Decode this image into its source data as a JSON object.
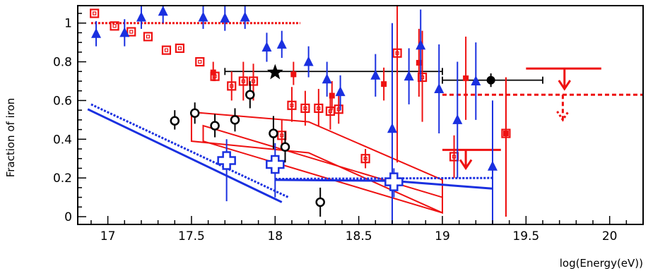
{
  "chart_data": {
    "type": "scatter",
    "title": "",
    "xlabel": "log(Energy(eV))",
    "ylabel": "Fraction of iron",
    "xlim": [
      16.82,
      20.2
    ],
    "ylim": [
      -0.04,
      1.09
    ],
    "x_ticks": [
      17,
      17.5,
      18,
      18.5,
      19,
      19.5,
      20
    ],
    "x_tick_labels": [
      "17",
      "17.5",
      "18",
      "18.5",
      "19",
      "19.5",
      "20"
    ],
    "y_ticks": [
      0,
      0.2,
      0.4,
      0.6,
      0.8,
      1
    ],
    "y_tick_labels": [
      "0",
      "0.2",
      "0.4",
      "0.6",
      "0.8",
      "1"
    ],
    "grid": false,
    "colors": {
      "red": "#ee1111",
      "blue": "#1a30e0",
      "black": "#000000"
    },
    "series": [
      {
        "marker": "open-square",
        "color": "#ee1111",
        "points": [
          {
            "x": 16.92,
            "y": 1.05,
            "lo": 1.05,
            "hi": 1.05
          },
          {
            "x": 17.04,
            "y": 0.985,
            "lo": 0.985,
            "hi": 0.985
          },
          {
            "x": 17.14,
            "y": 0.955,
            "lo": 0.955,
            "hi": 0.955
          },
          {
            "x": 17.24,
            "y": 0.93,
            "lo": 0.93,
            "hi": 0.93
          },
          {
            "x": 17.35,
            "y": 0.86,
            "lo": 0.86,
            "hi": 0.86
          },
          {
            "x": 17.43,
            "y": 0.87,
            "lo": 0.87,
            "hi": 0.87
          },
          {
            "x": 17.55,
            "y": 0.8,
            "lo": 0.8,
            "hi": 0.8
          },
          {
            "x": 17.64,
            "y": 0.725,
            "lo": 0.7,
            "hi": 0.76
          },
          {
            "x": 17.74,
            "y": 0.675,
            "lo": 0.6,
            "hi": 0.75
          },
          {
            "x": 17.81,
            "y": 0.7,
            "lo": 0.6,
            "hi": 0.8
          },
          {
            "x": 17.87,
            "y": 0.7,
            "lo": 0.6,
            "hi": 0.79
          },
          {
            "x": 18.1,
            "y": 0.575,
            "lo": 0.49,
            "hi": 0.67
          },
          {
            "x": 18.04,
            "y": 0.42,
            "lo": 0.35,
            "hi": 0.5
          },
          {
            "x": 18.18,
            "y": 0.56,
            "lo": 0.47,
            "hi": 0.65
          },
          {
            "x": 18.26,
            "y": 0.56,
            "lo": 0.47,
            "hi": 0.66
          },
          {
            "x": 18.33,
            "y": 0.545,
            "lo": 0.45,
            "hi": 0.64
          },
          {
            "x": 18.38,
            "y": 0.555,
            "lo": 0.48,
            "hi": 0.63
          },
          {
            "x": 18.54,
            "y": 0.3,
            "lo": 0.25,
            "hi": 0.35
          },
          {
            "x": 18.73,
            "y": 0.845,
            "lo": 0.28,
            "hi": 1.09
          },
          {
            "x": 18.88,
            "y": 0.72,
            "lo": 0.49,
            "hi": 0.96
          },
          {
            "x": 19.07,
            "y": 0.31,
            "lo": 0.2,
            "hi": 0.42
          },
          {
            "x": 19.38,
            "y": 0.43,
            "lo": 0.0,
            "hi": 0.72
          }
        ]
      },
      {
        "marker": "filled-square",
        "color": "#ee1111",
        "points": [
          {
            "x": 17.63,
            "y": 0.745,
            "lo": 0.7,
            "hi": 0.8
          },
          {
            "x": 18.11,
            "y": 0.735,
            "lo": 0.68,
            "hi": 0.8
          },
          {
            "x": 18.34,
            "y": 0.625,
            "lo": 0.55,
            "hi": 0.7
          },
          {
            "x": 18.65,
            "y": 0.685,
            "lo": 0.6,
            "hi": 0.77
          },
          {
            "x": 18.86,
            "y": 0.795,
            "lo": 0.62,
            "hi": 0.97
          },
          {
            "x": 19.14,
            "y": 0.715,
            "lo": 0.5,
            "hi": 0.93
          },
          {
            "x": 19.38,
            "y": 0.43,
            "lo": 0.0,
            "hi": 0.72
          }
        ]
      },
      {
        "marker": "triangle",
        "color": "#1a30e0",
        "points": [
          {
            "x": 16.93,
            "y": 0.945,
            "lo": 0.88,
            "hi": 1.01
          },
          {
            "x": 17.1,
            "y": 0.95,
            "lo": 0.88,
            "hi": 1.02
          },
          {
            "x": 17.2,
            "y": 1.03,
            "lo": 0.97,
            "hi": 1.09
          },
          {
            "x": 17.33,
            "y": 1.06,
            "lo": 1.0,
            "hi": 1.09
          },
          {
            "x": 17.57,
            "y": 1.03,
            "lo": 0.97,
            "hi": 1.09
          },
          {
            "x": 17.7,
            "y": 1.025,
            "lo": 0.96,
            "hi": 1.09
          },
          {
            "x": 17.82,
            "y": 1.03,
            "lo": 0.97,
            "hi": 1.09
          },
          {
            "x": 17.95,
            "y": 0.875,
            "lo": 0.8,
            "hi": 0.95
          },
          {
            "x": 18.04,
            "y": 0.89,
            "lo": 0.82,
            "hi": 0.96
          },
          {
            "x": 18.2,
            "y": 0.8,
            "lo": 0.72,
            "hi": 0.88
          },
          {
            "x": 18.31,
            "y": 0.71,
            "lo": 0.62,
            "hi": 0.8
          },
          {
            "x": 18.39,
            "y": 0.645,
            "lo": 0.55,
            "hi": 0.73
          },
          {
            "x": 18.6,
            "y": 0.73,
            "lo": 0.62,
            "hi": 0.84
          },
          {
            "x": 18.8,
            "y": 0.725,
            "lo": 0.58,
            "hi": 0.87
          },
          {
            "x": 18.87,
            "y": 0.885,
            "lo": 0.7,
            "hi": 1.07
          },
          {
            "x": 18.98,
            "y": 0.66,
            "lo": 0.43,
            "hi": 0.89
          },
          {
            "x": 19.09,
            "y": 0.5,
            "lo": 0.2,
            "hi": 0.8
          },
          {
            "x": 19.2,
            "y": 0.7,
            "lo": 0.5,
            "hi": 0.9
          },
          {
            "x": 18.7,
            "y": 0.455,
            "lo": -0.04,
            "hi": 1.0
          },
          {
            "x": 19.3,
            "y": 0.26,
            "lo": -0.04,
            "hi": 0.6
          }
        ]
      },
      {
        "marker": "open-cross",
        "color": "#1a30e0",
        "points": [
          {
            "x": 17.71,
            "y": 0.29,
            "lo": 0.08,
            "hi": 0.4
          },
          {
            "x": 18.0,
            "y": 0.27,
            "lo": 0.1,
            "hi": 0.38
          },
          {
            "x": 18.71,
            "y": 0.18,
            "lo": 0.1,
            "hi": 0.25
          }
        ]
      },
      {
        "marker": "open-circle",
        "color": "#000000",
        "points": [
          {
            "x": 17.4,
            "y": 0.495,
            "lo": 0.45,
            "hi": 0.55
          },
          {
            "x": 17.52,
            "y": 0.535,
            "lo": 0.48,
            "hi": 0.59
          },
          {
            "x": 17.64,
            "y": 0.47,
            "lo": 0.41,
            "hi": 0.53
          },
          {
            "x": 17.76,
            "y": 0.5,
            "lo": 0.44,
            "hi": 0.56
          },
          {
            "x": 17.85,
            "y": 0.63,
            "lo": 0.56,
            "hi": 0.7
          },
          {
            "x": 17.99,
            "y": 0.43,
            "lo": 0.35,
            "hi": 0.52
          },
          {
            "x": 18.06,
            "y": 0.36,
            "lo": 0.28,
            "hi": 0.44
          },
          {
            "x": 18.27,
            "y": 0.075,
            "lo": 0.0,
            "hi": 0.15
          }
        ]
      },
      {
        "marker": "filled-circle",
        "color": "#000000",
        "points": [
          {
            "x": 19.29,
            "y": 0.705,
            "lo": 0.67,
            "hi": 0.74
          }
        ]
      },
      {
        "marker": "star",
        "color": "#000000",
        "points": [
          {
            "x": 18.0,
            "y": 0.745,
            "lo": 0.745,
            "hi": 0.745
          }
        ]
      }
    ],
    "x_error_bars": [
      {
        "y": 0.75,
        "x_lo": 17.7,
        "x_hi": 19.0,
        "color": "#000000"
      },
      {
        "y": 0.705,
        "x_lo": 19.0,
        "x_hi": 19.6,
        "color": "#000000"
      }
    ],
    "upper_limits": [
      {
        "x": 19.73,
        "y": 0.765,
        "x_lo": 19.5,
        "x_hi": 19.95,
        "arrow_to": 0.66,
        "color": "#ee1111",
        "dashed": false
      },
      {
        "x": 19.72,
        "y": 0.63,
        "x_lo": 19.0,
        "x_hi": 20.2,
        "arrow_to": 0.5,
        "color": "#ee1111",
        "dashed": true
      },
      {
        "x": 19.14,
        "y": 0.345,
        "x_lo": 19.0,
        "x_hi": 19.35,
        "arrow_to": 0.25,
        "color": "#ee1111",
        "dashed": false
      }
    ],
    "lines": [
      {
        "color": "#ee1111",
        "style": "dotted",
        "points": [
          [
            16.9,
            1.0
          ],
          [
            18.15,
            1.0
          ]
        ]
      },
      {
        "color": "#1a30e0",
        "style": "solid",
        "points": [
          [
            16.88,
            0.555
          ],
          [
            18.04,
            0.075
          ]
        ]
      },
      {
        "color": "#1a30e0",
        "style": "dotted",
        "points": [
          [
            16.9,
            0.58
          ],
          [
            18.08,
            0.1
          ]
        ]
      },
      {
        "color": "#1a30e0",
        "style": "solid",
        "points": [
          [
            18.0,
            0.19
          ],
          [
            18.7,
            0.185
          ],
          [
            19.3,
            0.145
          ]
        ]
      },
      {
        "color": "#1a30e0",
        "style": "dotted",
        "points": [
          [
            18.0,
            0.195
          ],
          [
            19.3,
            0.2
          ]
        ]
      }
    ],
    "bands": [
      {
        "color": "#ee1111",
        "points": [
          [
            17.5,
            0.54
          ],
          [
            18.2,
            0.49
          ],
          [
            19.0,
            0.19
          ],
          [
            19.0,
            0.02
          ],
          [
            18.2,
            0.33
          ],
          [
            17.5,
            0.39
          ]
        ]
      },
      {
        "color": "#ee1111",
        "points": [
          [
            17.57,
            0.47
          ],
          [
            19.0,
            0.1
          ],
          [
            19.0,
            0.02
          ],
          [
            17.57,
            0.39
          ]
        ]
      }
    ]
  }
}
